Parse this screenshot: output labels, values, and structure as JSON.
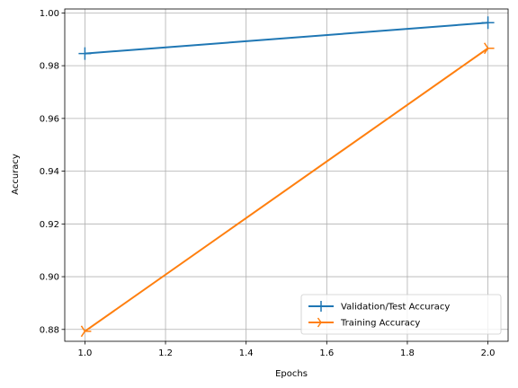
{
  "chart_data": {
    "type": "line",
    "title": "",
    "xlabel": "Epochs",
    "ylabel": "Accuracy",
    "xlim": [
      0.95,
      2.05
    ],
    "ylim": [
      0.8755,
      1.0015
    ],
    "xticks": [
      1.0,
      1.2,
      1.4,
      1.6,
      1.8,
      2.0
    ],
    "xtick_labels": [
      "1.0",
      "1.2",
      "1.4",
      "1.6",
      "1.8",
      "2.0"
    ],
    "yticks": [
      0.88,
      0.9,
      0.92,
      0.94,
      0.96,
      0.98,
      1.0
    ],
    "ytick_labels": [
      "0.88",
      "0.90",
      "0.92",
      "0.94",
      "0.96",
      "0.98",
      "1.00"
    ],
    "grid": true,
    "legend_position": "lower-right",
    "series": [
      {
        "name": "Validation/Test Accuracy",
        "color": "#1f77b4",
        "marker": "plus",
        "x": [
          1,
          2
        ],
        "values": [
          0.9846,
          0.9963
        ]
      },
      {
        "name": "Training Accuracy",
        "color": "#ff7f0e",
        "marker": "tri-right",
        "x": [
          1,
          2
        ],
        "values": [
          0.8793,
          0.9866
        ]
      }
    ]
  }
}
